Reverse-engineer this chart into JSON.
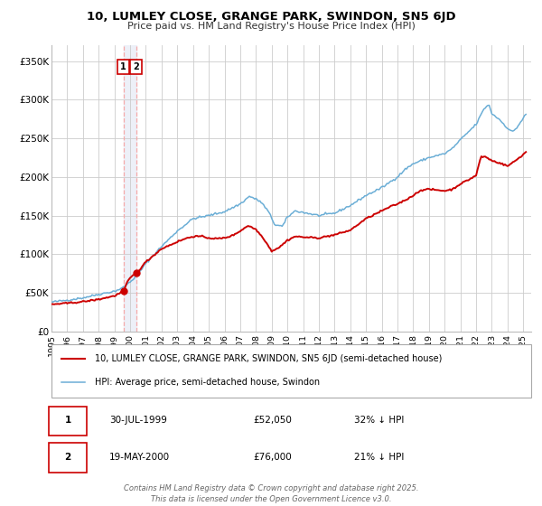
{
  "title": "10, LUMLEY CLOSE, GRANGE PARK, SWINDON, SN5 6JD",
  "subtitle": "Price paid vs. HM Land Registry's House Price Index (HPI)",
  "transactions": [
    {
      "date": "30-JUL-1999",
      "price": 52050,
      "label": "1",
      "pct": "32% ↓ HPI"
    },
    {
      "date": "19-MAY-2000",
      "price": 76000,
      "label": "2",
      "pct": "21% ↓ HPI"
    }
  ],
  "legend_property": "10, LUMLEY CLOSE, GRANGE PARK, SWINDON, SN5 6JD (semi-detached house)",
  "legend_hpi": "HPI: Average price, semi-detached house, Swindon",
  "footer": "Contains HM Land Registry data © Crown copyright and database right 2025.\nThis data is licensed under the Open Government Licence v3.0.",
  "price_color": "#cc0000",
  "hpi_color": "#6baed6",
  "ylim": [
    0,
    370000
  ],
  "yticks": [
    0,
    50000,
    100000,
    150000,
    200000,
    250000,
    300000,
    350000
  ],
  "background_color": "#ffffff",
  "grid_color": "#cccccc",
  "annotation_box_color": "#cc0000",
  "vline_color": "#f5aaaa",
  "vband_color": "#edf0f8",
  "t1": 1999.583,
  "t2": 2000.375,
  "p1": 52050,
  "p2": 76000,
  "xmin": 1995.0,
  "xmax": 2025.5
}
